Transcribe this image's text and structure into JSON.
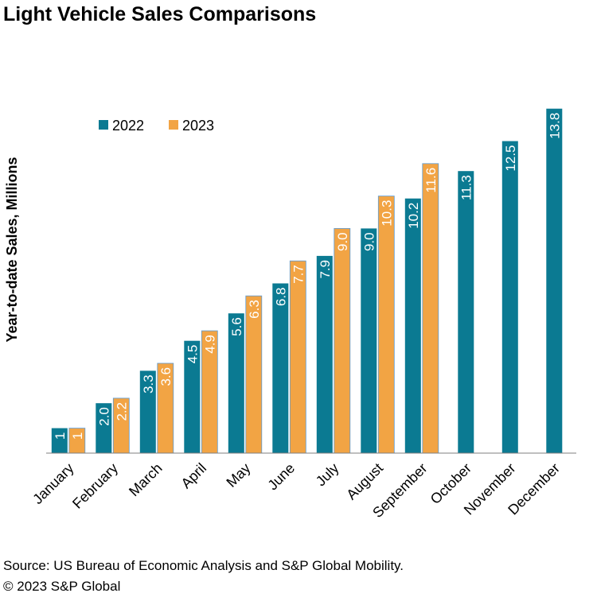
{
  "title": "Light Vehicle Sales Comparisons",
  "footer": {
    "source": "Source: US Bureau of Economic Analysis and S&P Global Mobility.",
    "copyright": "© 2023 S&P Global"
  },
  "colors": {
    "series_2022": "#0b7a92",
    "series_2023": "#f2a444",
    "axis": "#7f7f7f"
  },
  "chart_data": {
    "type": "bar",
    "title": "Light Vehicle Sales Comparisons",
    "ylabel": "Year-to-date Sales, Millions",
    "xlabel": "",
    "ylim": [
      0,
      14
    ],
    "grid": false,
    "legend_position": "top-left",
    "categories": [
      "January",
      "February",
      "March",
      "April",
      "May",
      "June",
      "July",
      "August",
      "September",
      "October",
      "November",
      "December"
    ],
    "series": [
      {
        "name": "2022",
        "color": "#0b7a92",
        "values": [
          1,
          2.0,
          3.3,
          4.5,
          5.6,
          6.8,
          7.9,
          9.0,
          10.2,
          11.3,
          12.5,
          13.8
        ],
        "labels": [
          "1",
          "2.0",
          "3.3",
          "4.5",
          "5.6",
          "6.8",
          "7.9",
          "9.0",
          "10.2",
          "11.3",
          "12.5",
          "13.8"
        ]
      },
      {
        "name": "2023",
        "color": "#f2a444",
        "values": [
          1,
          2.2,
          3.6,
          4.9,
          6.3,
          7.7,
          9.0,
          10.3,
          11.6,
          null,
          null,
          null
        ],
        "labels": [
          "1",
          "2.2",
          "3.6",
          "4.9",
          "6.3",
          "7.7",
          "9.0",
          "10.3",
          "11.6",
          null,
          null,
          null
        ]
      }
    ]
  }
}
